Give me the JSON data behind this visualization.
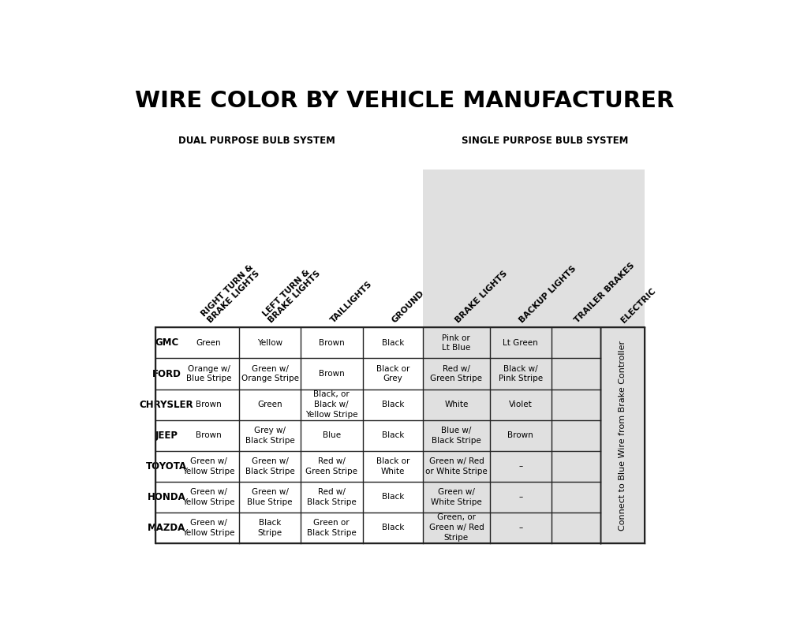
{
  "title": "WIRE COLOR BY VEHICLE MANUFACTURER",
  "dual_label": "DUAL PURPOSE BULB SYSTEM",
  "single_label": "SINGLE PURPOSE BULB SYSTEM",
  "col_headers": [
    "RIGHT TURN &\nBRAKE LIGHTS",
    "LEFT TURN &\nBRAKE LIGHTS",
    "TAILLIGHTS",
    "GROUND",
    "BRAKE LIGHTS",
    "BACKUP LIGHTS",
    "TRAILER BRAKES",
    "ELECTRIC"
  ],
  "row_labels": [
    "GMC",
    "FORD",
    "CHRYSLER",
    "JEEP",
    "TOYOTA",
    "HONDA",
    "MAZDA"
  ],
  "table_data": [
    [
      "Green",
      "Yellow",
      "Brown",
      "Black",
      "Pink or\nLt Blue",
      "Lt Green",
      ""
    ],
    [
      "Orange w/\nBlue Stripe",
      "Green w/\nOrange Stripe",
      "Brown",
      "Black or\nGrey",
      "Red w/\nGreen Stripe",
      "Black w/\nPink Stripe",
      ""
    ],
    [
      "Brown",
      "Green",
      "Black, or\nBlack w/\nYellow Stripe",
      "Black",
      "White",
      "Violet",
      ""
    ],
    [
      "Brown",
      "Grey w/\nBlack Stripe",
      "Blue",
      "Black",
      "Blue w/\nBlack Stripe",
      "Brown",
      ""
    ],
    [
      "Green w/\nYellow Stripe",
      "Green w/\nBlack Stripe",
      "Red w/\nGreen Stripe",
      "Black or\nWhite",
      "Green w/ Red\nor White Stripe",
      "–",
      ""
    ],
    [
      "Green w/\nYellow Stripe",
      "Green w/\nBlue Stripe",
      "Red w/\nBlack Stripe",
      "Black",
      "Green w/\nWhite Stripe",
      "–",
      ""
    ],
    [
      "Green w/\nYellow Stripe",
      "Black\nStripe",
      "Green or\nBlack Stripe",
      "Black",
      "Green, or\nGreen w/ Red\nStripe",
      "–",
      ""
    ]
  ],
  "side_label": "Connect to Blue Wire from Brake Controller",
  "bg_color": "#ffffff",
  "single_bg": "#e0e0e0",
  "border_color": "#222222"
}
